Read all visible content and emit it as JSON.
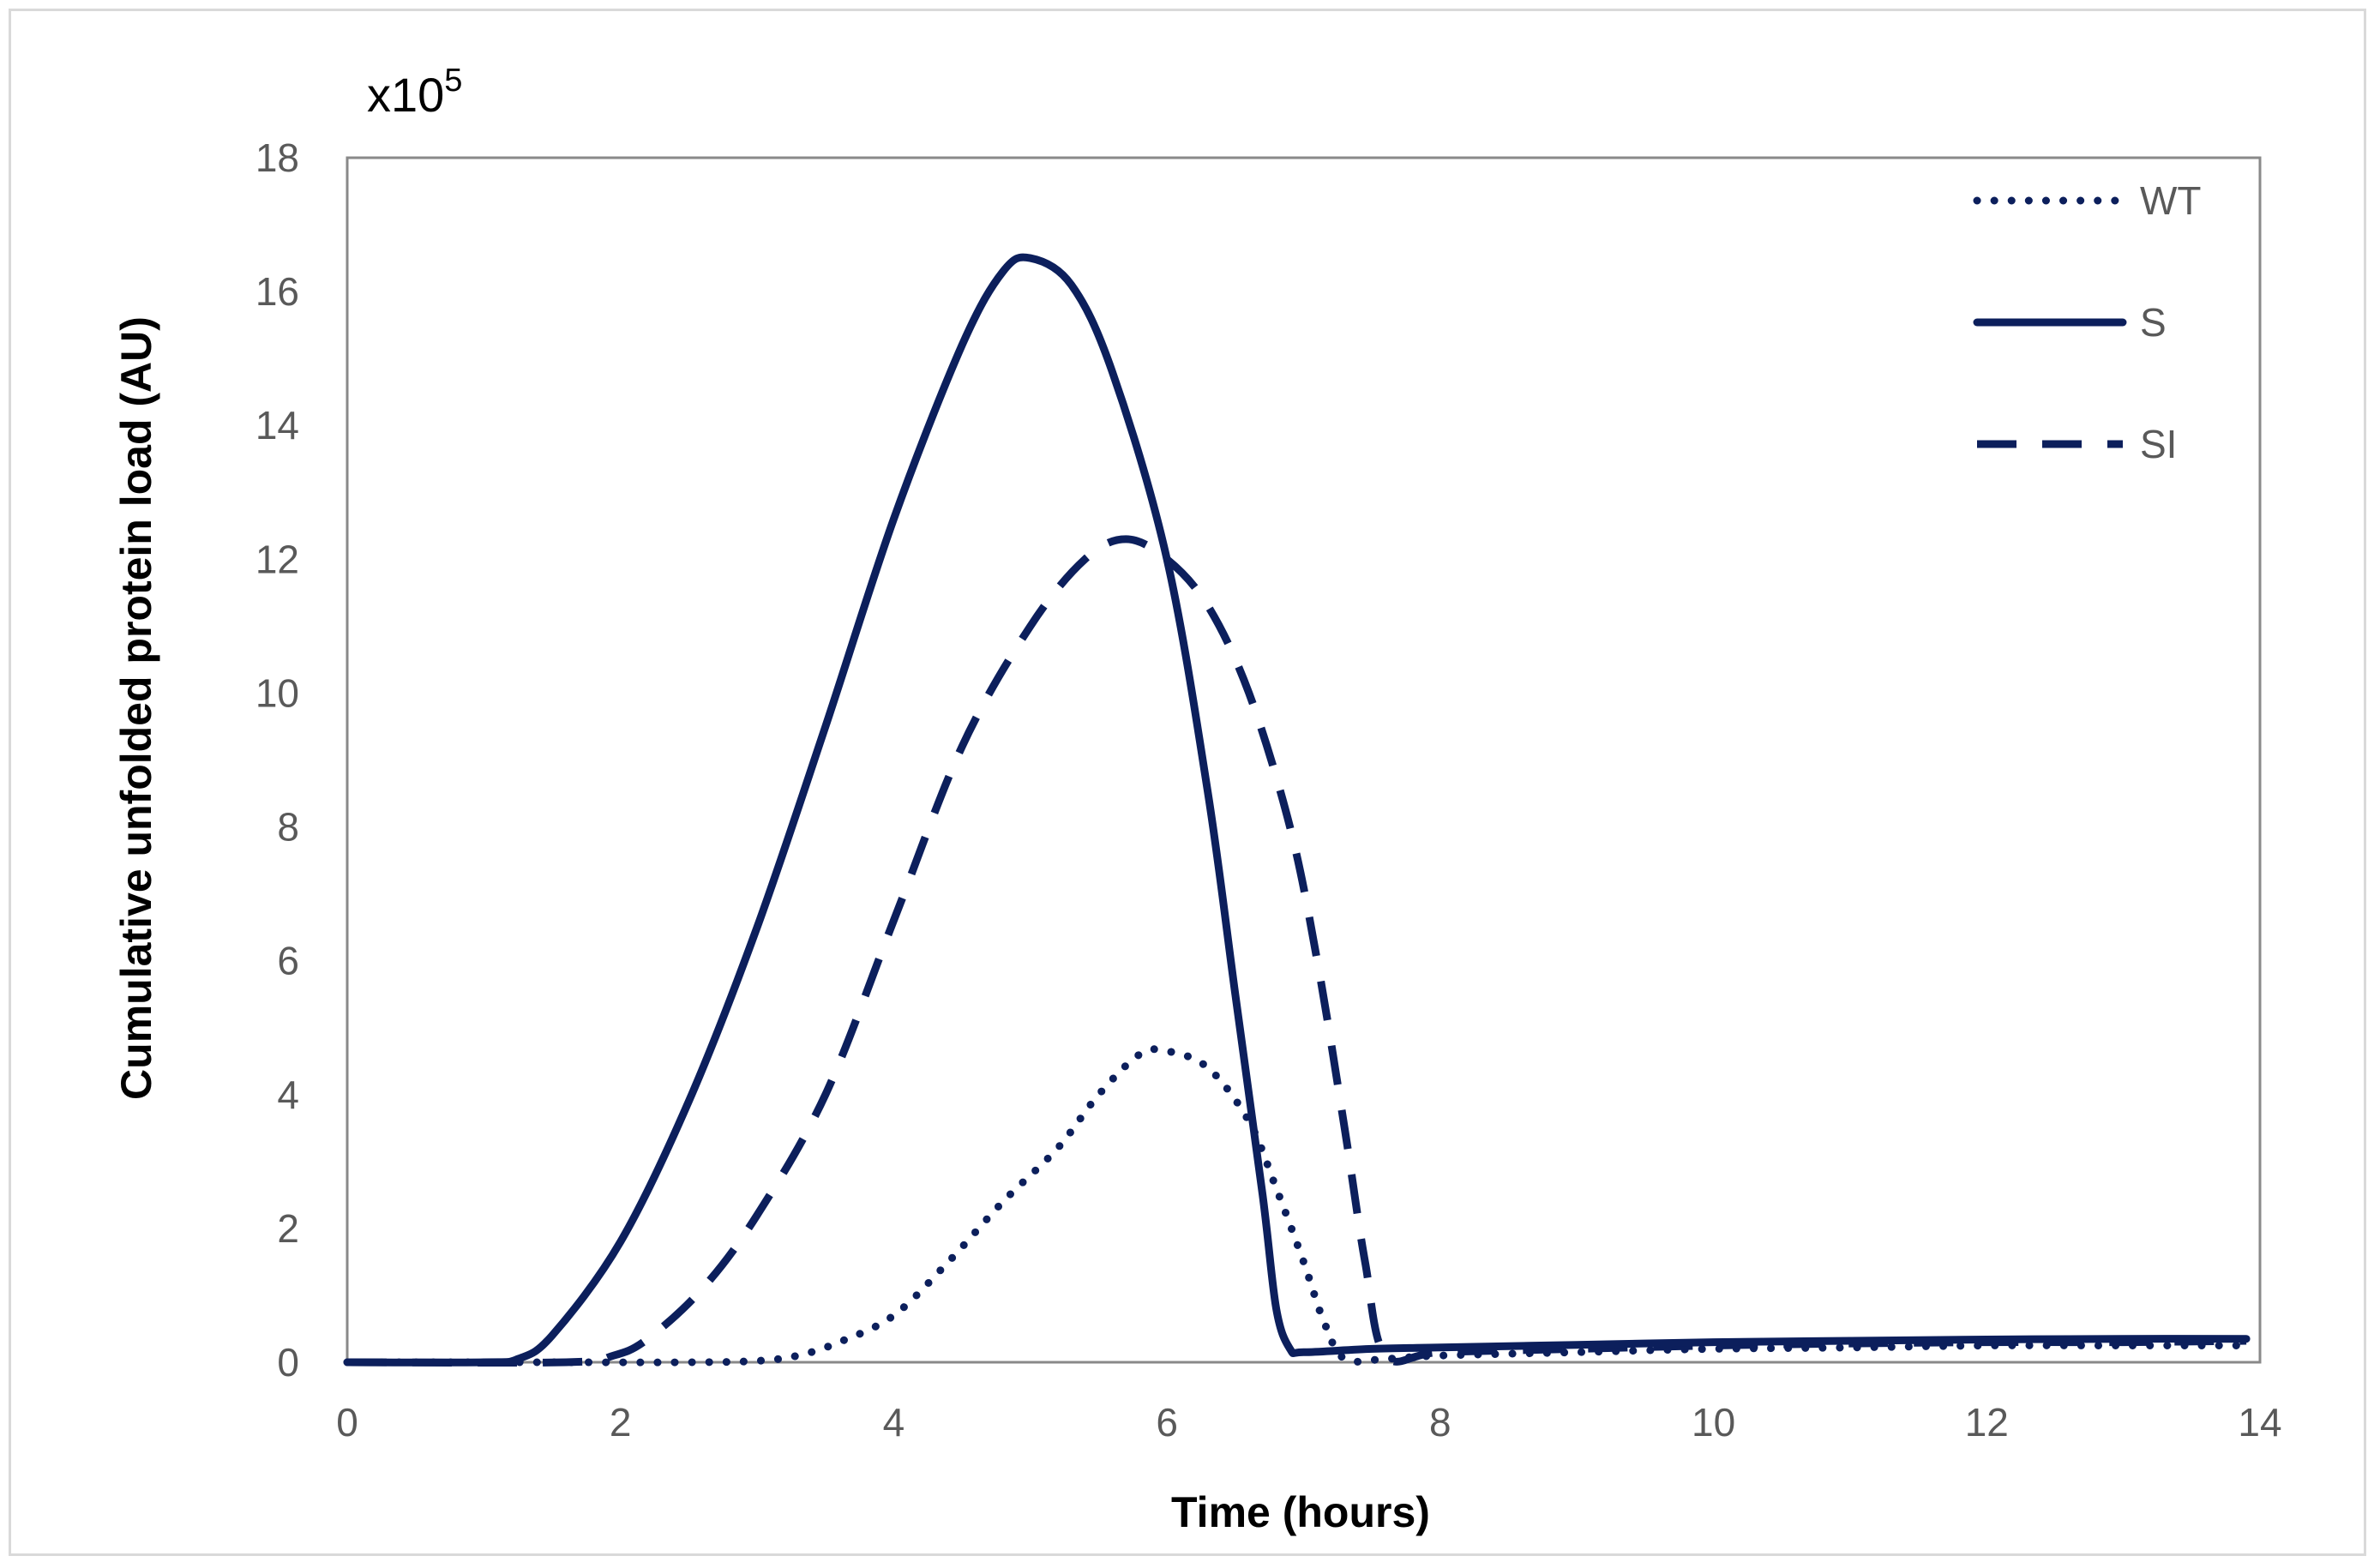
{
  "chart_data": {
    "type": "line",
    "xlabel": "Time (hours)",
    "ylabel": "Cumulative unfolded protein load (AU)",
    "multiplier": {
      "base": "x10",
      "exponent": "5"
    },
    "xlim": [
      0,
      14
    ],
    "ylim": [
      0,
      18
    ],
    "x_ticks": [
      0,
      2,
      4,
      6,
      8,
      10,
      12,
      14
    ],
    "y_ticks": [
      0,
      2,
      4,
      6,
      8,
      10,
      12,
      14,
      16,
      18
    ],
    "grid": false,
    "legend_position": "top-right",
    "color": "#0c1f5c",
    "series": [
      {
        "name": "WT",
        "style": "dotted",
        "points": [
          [
            0,
            0
          ],
          [
            1.5,
            0
          ],
          [
            2.5,
            0
          ],
          [
            3,
            0.02
          ],
          [
            3.3,
            0.1
          ],
          [
            3.6,
            0.3
          ],
          [
            4,
            0.7
          ],
          [
            4.4,
            1.5
          ],
          [
            4.8,
            2.4
          ],
          [
            5.2,
            3.2
          ],
          [
            5.5,
            4.0
          ],
          [
            5.8,
            4.6
          ],
          [
            6,
            4.65
          ],
          [
            6.3,
            4.4
          ],
          [
            6.6,
            3.6
          ],
          [
            6.8,
            2.6
          ],
          [
            7,
            1.5
          ],
          [
            7.15,
            0.6
          ],
          [
            7.3,
            0.05
          ],
          [
            7.6,
            0.05
          ],
          [
            8,
            0.1
          ],
          [
            9,
            0.15
          ],
          [
            10,
            0.2
          ],
          [
            11,
            0.22
          ],
          [
            12,
            0.25
          ],
          [
            13,
            0.25
          ],
          [
            13.9,
            0.25
          ]
        ]
      },
      {
        "name": "S",
        "style": "solid",
        "points": [
          [
            0,
            0
          ],
          [
            1,
            0
          ],
          [
            1.25,
            0.05
          ],
          [
            1.5,
            0.4
          ],
          [
            2,
            1.8
          ],
          [
            2.5,
            3.9
          ],
          [
            3,
            6.5
          ],
          [
            3.5,
            9.5
          ],
          [
            4,
            12.6
          ],
          [
            4.5,
            15.2
          ],
          [
            4.8,
            16.3
          ],
          [
            5,
            16.5
          ],
          [
            5.3,
            16.1
          ],
          [
            5.6,
            14.8
          ],
          [
            6,
            12.0
          ],
          [
            6.3,
            8.5
          ],
          [
            6.5,
            5.5
          ],
          [
            6.7,
            2.5
          ],
          [
            6.8,
            0.8
          ],
          [
            6.9,
            0.2
          ],
          [
            7,
            0.15
          ],
          [
            7.5,
            0.2
          ],
          [
            8,
            0.22
          ],
          [
            9,
            0.26
          ],
          [
            10,
            0.3
          ],
          [
            11,
            0.32
          ],
          [
            12,
            0.34
          ],
          [
            13,
            0.35
          ],
          [
            13.9,
            0.35
          ]
        ]
      },
      {
        "name": "SI",
        "style": "dashed",
        "points": [
          [
            0,
            0
          ],
          [
            1.6,
            0
          ],
          [
            1.95,
            0.1
          ],
          [
            2.2,
            0.35
          ],
          [
            2.6,
            1.1
          ],
          [
            3,
            2.2
          ],
          [
            3.5,
            4.0
          ],
          [
            4,
            6.6
          ],
          [
            4.5,
            9.2
          ],
          [
            5,
            11.0
          ],
          [
            5.4,
            12.0
          ],
          [
            5.7,
            12.3
          ],
          [
            6,
            12.0
          ],
          [
            6.3,
            11.3
          ],
          [
            6.6,
            10.0
          ],
          [
            6.9,
            8.0
          ],
          [
            7.1,
            6.0
          ],
          [
            7.3,
            3.5
          ],
          [
            7.45,
            1.5
          ],
          [
            7.6,
            0.1
          ],
          [
            8,
            0.15
          ],
          [
            9,
            0.2
          ],
          [
            10,
            0.25
          ],
          [
            11,
            0.28
          ],
          [
            12,
            0.3
          ],
          [
            13,
            0.3
          ],
          [
            13.9,
            0.32
          ]
        ]
      }
    ]
  }
}
